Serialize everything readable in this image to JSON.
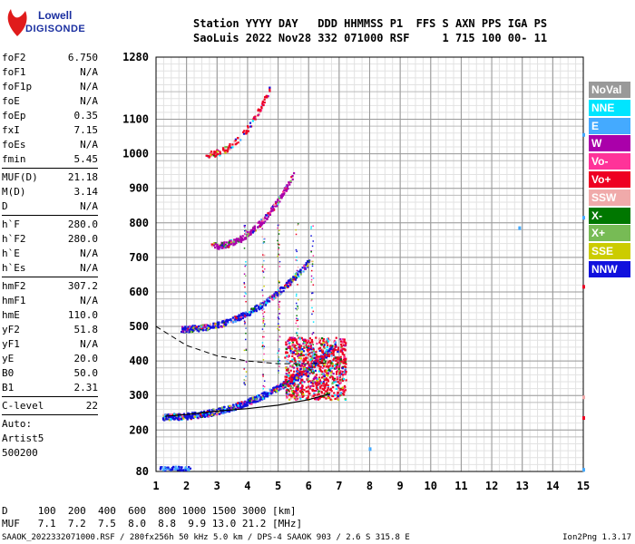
{
  "logo": {
    "line1": "Lowell",
    "line2": "DIGISONDE"
  },
  "header": {
    "line1": "Station YYYY DAY   DDD HHMMSS P1  FFS S AXN PPS IGA PS",
    "line2": "SaoLuis 2022 Nov28 332 071000 RSF     1 715 100 00- 11"
  },
  "params_groups": [
    [
      [
        "foF2",
        "6.750"
      ],
      [
        "foF1",
        "N/A"
      ],
      [
        "foF1p",
        "N/A"
      ],
      [
        "foE",
        "N/A"
      ],
      [
        "foEp",
        "0.35"
      ],
      [
        "fxI",
        "7.15"
      ],
      [
        "foEs",
        "N/A"
      ],
      [
        "fmin",
        "5.45"
      ]
    ],
    [
      [
        "MUF(D)",
        "21.18"
      ],
      [
        "M(D)",
        "3.14"
      ],
      [
        "D",
        "N/A"
      ]
    ],
    [
      [
        "h`F",
        "280.0"
      ],
      [
        "h`F2",
        "280.0"
      ],
      [
        "h`E",
        "N/A"
      ],
      [
        "h`Es",
        "N/A"
      ]
    ],
    [
      [
        "hmF2",
        "307.2"
      ],
      [
        "hmF1",
        "N/A"
      ],
      [
        "hmE",
        "110.0"
      ],
      [
        "yF2",
        "51.8"
      ],
      [
        "yF1",
        "N/A"
      ],
      [
        "yE",
        "20.0"
      ],
      [
        "B0",
        "50.0"
      ],
      [
        "B1",
        "2.31"
      ]
    ],
    [
      [
        "C-level",
        "22"
      ]
    ]
  ],
  "auto": [
    "Auto:",
    "Artist5",
    "500200"
  ],
  "legend": [
    {
      "label": "NoVal",
      "color": "#999999"
    },
    {
      "label": "NNE",
      "color": "#00e5ff"
    },
    {
      "label": "E",
      "color": "#44aaff"
    },
    {
      "label": "W",
      "color": "#aa00aa"
    },
    {
      "label": "Vo-",
      "color": "#ff3399"
    },
    {
      "label": "Vo+",
      "color": "#ee0022"
    },
    {
      "label": "SSW",
      "color": "#f0aaaa"
    },
    {
      "label": "X-",
      "color": "#007700"
    },
    {
      "label": "X+",
      "color": "#77bb55"
    },
    {
      "label": "SSE",
      "color": "#cccc00"
    },
    {
      "label": "NNW",
      "color": "#1111dd"
    }
  ],
  "footer": {
    "line1": "D     100  200  400  600  800 1000 1500 3000 [km]",
    "line2": "MUF   7.1  7.2  7.5  8.0  8.8  9.9 13.0 21.2 [MHz]",
    "line3": "SAAOK_2022332071000.RSF / 280fx256h 50 kHz 5.0 km / DPS-4 SAAOK 903 / 2.6 S 315.8 E",
    "version": "Ion2Png 1.3.17"
  },
  "chart_data": {
    "type": "scatter",
    "x_ticks": [
      1,
      2,
      3,
      4,
      5,
      6,
      7,
      8,
      9,
      10,
      11,
      12,
      13,
      14,
      15
    ],
    "y_ticks": [
      80,
      200,
      300,
      400,
      500,
      600,
      700,
      800,
      900,
      1000,
      1100,
      1280
    ],
    "xlim": [
      1,
      15
    ],
    "ylim": [
      80,
      1280
    ],
    "grid": true,
    "legend_position": "right",
    "traces": [
      {
        "name": "F2 trace 1",
        "x_range": [
          1.2,
          6.8
        ],
        "h_base": 240,
        "h_top": 440,
        "color": "#1111dd"
      },
      {
        "name": "F2 trace 2",
        "x_range": [
          1.8,
          6.0
        ],
        "h_base": 495,
        "h_top": 690,
        "color": "#1111dd"
      },
      {
        "name": "F2 trace 3",
        "x_range": [
          2.8,
          5.5
        ],
        "h_base": 735,
        "h_top": 945,
        "color": "#aa00aa"
      },
      {
        "name": "F2 trace 4",
        "x_range": [
          2.6,
          4.7
        ],
        "h_base": 1000,
        "h_top": 1190,
        "color": "#ee0022"
      }
    ],
    "profile_line": [
      [
        1.3,
        240
      ],
      [
        2,
        245
      ],
      [
        3,
        255
      ],
      [
        4,
        262
      ],
      [
        5,
        272
      ],
      [
        6,
        288
      ],
      [
        6.7,
        305
      ]
    ],
    "dashed_line": [
      [
        1.0,
        500
      ],
      [
        2,
        445
      ],
      [
        3,
        415
      ],
      [
        4,
        400
      ],
      [
        5,
        392
      ],
      [
        6,
        392
      ],
      [
        6.7,
        395
      ]
    ]
  }
}
